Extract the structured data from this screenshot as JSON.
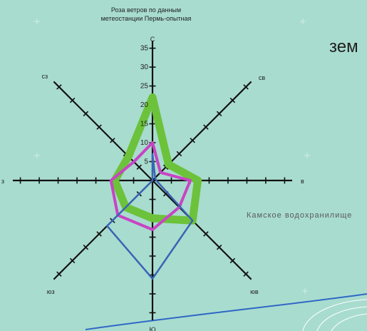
{
  "chart_data": {
    "type": "radar",
    "title_lines": [
      "Роза ветров по данным",
      "метеостанции Пермь-опытная"
    ],
    "directions": [
      "С",
      "СВ",
      "В",
      "ЮВ",
      "Ю",
      "ЮЗ",
      "З",
      "СЗ"
    ],
    "direction_labels": [
      "С",
      "св",
      "в",
      "юв",
      "Ю",
      "юз",
      "з",
      "сз"
    ],
    "radial_ticks": [
      5,
      10,
      15,
      20,
      25,
      30,
      35
    ],
    "radial_tick_labels": [
      "5",
      "10",
      "15",
      "20",
      "25",
      "30",
      "35"
    ],
    "rmax": 37,
    "series": [
      {
        "color": "#6cc23a",
        "values": [
          22,
          6,
          12,
          15,
          10,
          10,
          10,
          9
        ]
      },
      {
        "color": "#c844c4",
        "values": [
          10,
          3,
          10,
          10,
          13,
          13,
          11,
          7
        ]
      },
      {
        "color": "#3a64b4",
        "values": [
          7,
          1,
          1,
          15,
          26,
          17,
          0,
          0
        ]
      }
    ]
  },
  "annotations": {
    "side_word": "зем",
    "reservoir": "Камское водохранилище"
  }
}
